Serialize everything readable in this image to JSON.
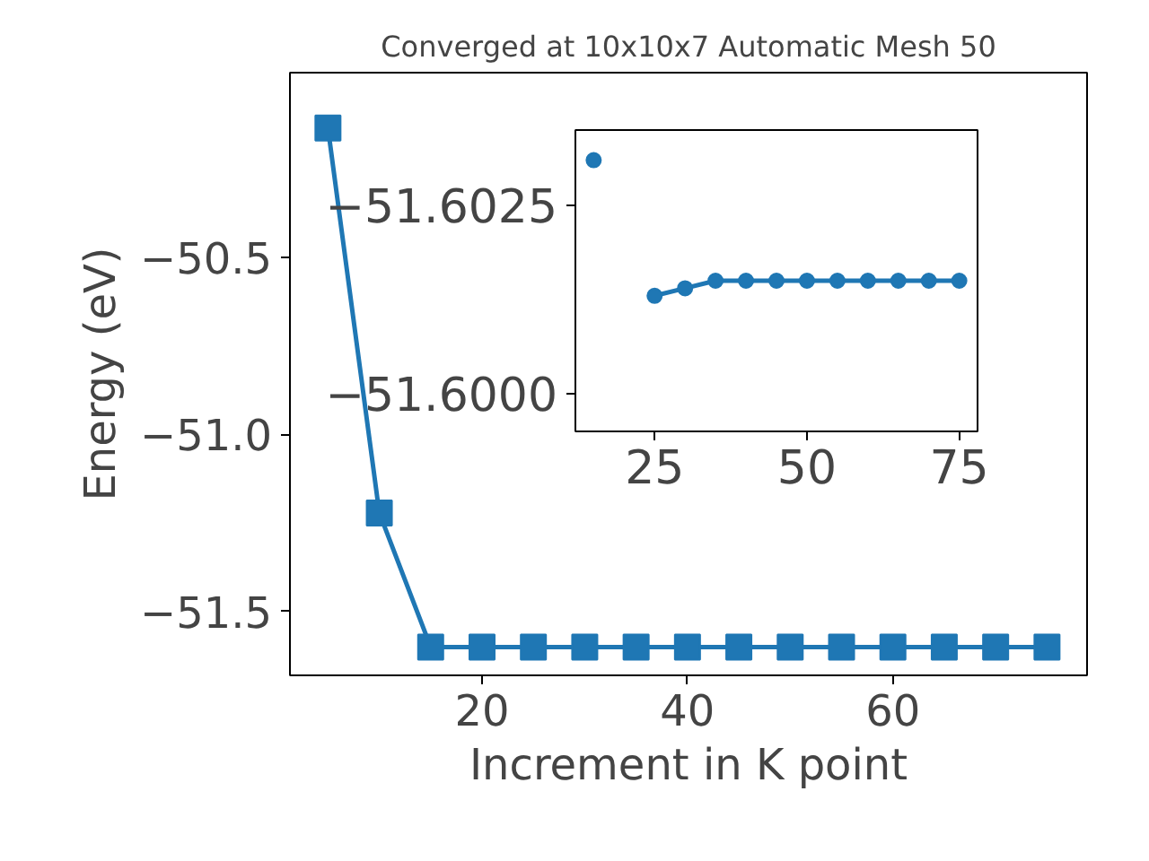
{
  "chart_data": [
    {
      "type": "line",
      "title": "Converged at 10x10x7 Automatic Mesh 50",
      "xlabel": "Increment in K point",
      "ylabel": "Energy (eV)",
      "x": [
        5,
        10,
        15,
        20,
        25,
        30,
        35,
        40,
        45,
        50,
        55,
        60,
        65,
        70,
        75
      ],
      "series": [
        {
          "color": "#1f77b4",
          "values": [
            -50.136,
            -51.222,
            -51.6,
            -51.6,
            -51.6,
            -51.6,
            -51.6,
            -51.6,
            -51.6,
            -51.6,
            -51.6,
            -51.6,
            -51.6,
            -51.6,
            -51.6
          ]
        }
      ],
      "xlim": [
        1.3,
        78.9
      ],
      "ylim": [
        -51.68,
        -49.98
      ],
      "xticks": [
        20,
        40,
        60
      ],
      "yticks": [
        {
          "value": -50.5,
          "label": "−50.5"
        },
        {
          "value": -51.0,
          "label": "−51.0"
        },
        {
          "value": -51.5,
          "label": "−51.5"
        }
      ],
      "marker": "square",
      "line_style": "solid",
      "grid": false
    },
    {
      "type": "line",
      "x": [
        15,
        20,
        25,
        30,
        35,
        40,
        45,
        50,
        55,
        60,
        65,
        70,
        75
      ],
      "series": [
        {
          "color": "#1f77b4",
          "values": [
            -51.6031,
            null,
            -51.6013,
            -51.6014,
            -51.6015,
            -51.6015,
            -51.6015,
            -51.6015,
            -51.6015,
            -51.6015,
            -51.6015,
            -51.6015,
            -51.6015
          ]
        }
      ],
      "xlim": [
        12,
        78
      ],
      "ylim": [
        -51.5995,
        -51.6035
      ],
      "xticks": [
        25,
        50,
        75
      ],
      "yticks": [
        {
          "value": -51.6025,
          "label": "−51.6025"
        },
        {
          "value": -51.6,
          "label": "−51.6000"
        }
      ],
      "marker": "circle",
      "line_style": "solid",
      "grid": false
    }
  ]
}
